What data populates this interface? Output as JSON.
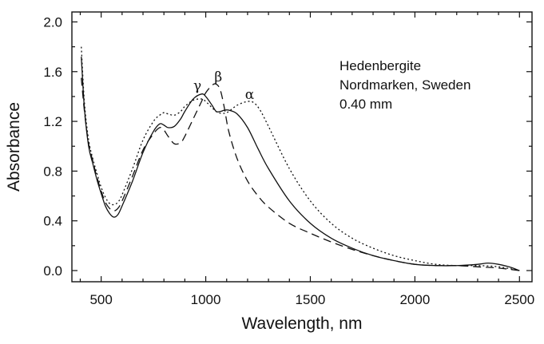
{
  "chart_data": {
    "type": "line",
    "xlabel": "Wavelength, nm",
    "ylabel": "Absorbance",
    "xlim": [
      360,
      2560
    ],
    "ylim": [
      -0.09,
      2.08
    ],
    "xticks": [
      500,
      1000,
      1500,
      2000,
      2500
    ],
    "yticks": [
      0.0,
      0.4,
      0.8,
      1.2,
      1.6,
      2.0
    ],
    "xtick_labels": [
      "500",
      "1000",
      "1500",
      "2000",
      "2500"
    ],
    "ytick_labels": [
      "0.0",
      "0.4",
      "0.8",
      "1.2",
      "1.6",
      "2.0"
    ],
    "grid": false,
    "annotation_lines": [
      "Hedenbergite",
      "Nordmarken, Sweden",
      "0.40 mm"
    ],
    "peak_labels": [
      {
        "text": "γ",
        "x": 960,
        "y": 1.45
      },
      {
        "text": "β",
        "x": 1060,
        "y": 1.52
      },
      {
        "text": "α",
        "x": 1210,
        "y": 1.38
      }
    ],
    "series": [
      {
        "style": "solid",
        "x": [
          405,
          420,
          440,
          460,
          480,
          500,
          520,
          540,
          560,
          580,
          600,
          650,
          700,
          750,
          780,
          800,
          820,
          850,
          880,
          900,
          940,
          980,
          1000,
          1030,
          1050,
          1070,
          1090,
          1110,
          1150,
          1200,
          1250,
          1300,
          1400,
          1500,
          1600,
          1700,
          1800,
          1900,
          2000,
          2100,
          2200,
          2300,
          2350,
          2400,
          2450,
          2500
        ],
        "y": [
          1.72,
          1.3,
          1.0,
          0.86,
          0.73,
          0.62,
          0.52,
          0.46,
          0.43,
          0.45,
          0.52,
          0.72,
          0.95,
          1.12,
          1.18,
          1.17,
          1.15,
          1.16,
          1.22,
          1.28,
          1.38,
          1.42,
          1.4,
          1.33,
          1.28,
          1.28,
          1.29,
          1.29,
          1.26,
          1.15,
          0.98,
          0.82,
          0.56,
          0.38,
          0.26,
          0.18,
          0.12,
          0.08,
          0.05,
          0.04,
          0.04,
          0.05,
          0.06,
          0.05,
          0.03,
          0.0
        ]
      },
      {
        "style": "dashed",
        "x": [
          405,
          420,
          440,
          460,
          480,
          500,
          520,
          540,
          560,
          580,
          600,
          650,
          700,
          750,
          780,
          800,
          820,
          850,
          880,
          900,
          940,
          980,
          1000,
          1030,
          1050,
          1070,
          1090,
          1110,
          1150,
          1200,
          1250,
          1300,
          1400,
          1500,
          1600,
          1700,
          1800,
          1900,
          2000,
          2100,
          2200,
          2300,
          2400,
          2500
        ],
        "y": [
          1.55,
          1.28,
          1.02,
          0.88,
          0.75,
          0.64,
          0.55,
          0.5,
          0.48,
          0.5,
          0.56,
          0.76,
          0.97,
          1.1,
          1.15,
          1.13,
          1.08,
          1.02,
          1.03,
          1.08,
          1.22,
          1.36,
          1.43,
          1.49,
          1.5,
          1.45,
          1.3,
          1.12,
          0.9,
          0.72,
          0.6,
          0.51,
          0.38,
          0.3,
          0.23,
          0.17,
          0.12,
          0.08,
          0.05,
          0.04,
          0.04,
          0.03,
          0.02,
          0.0
        ]
      },
      {
        "style": "dotted",
        "x": [
          405,
          420,
          440,
          460,
          480,
          500,
          520,
          540,
          560,
          580,
          600,
          650,
          700,
          750,
          780,
          800,
          820,
          850,
          880,
          900,
          940,
          980,
          1000,
          1030,
          1060,
          1100,
          1150,
          1200,
          1230,
          1260,
          1300,
          1400,
          1500,
          1600,
          1700,
          1800,
          1900,
          2000,
          2100,
          2200,
          2300,
          2400,
          2500
        ],
        "y": [
          1.8,
          1.35,
          1.05,
          0.9,
          0.78,
          0.67,
          0.59,
          0.54,
          0.53,
          0.55,
          0.61,
          0.82,
          1.05,
          1.2,
          1.25,
          1.27,
          1.26,
          1.25,
          1.28,
          1.32,
          1.37,
          1.38,
          1.36,
          1.31,
          1.27,
          1.27,
          1.33,
          1.36,
          1.35,
          1.29,
          1.16,
          0.82,
          0.56,
          0.38,
          0.26,
          0.18,
          0.12,
          0.08,
          0.05,
          0.04,
          0.04,
          0.03,
          0.0
        ]
      }
    ]
  }
}
